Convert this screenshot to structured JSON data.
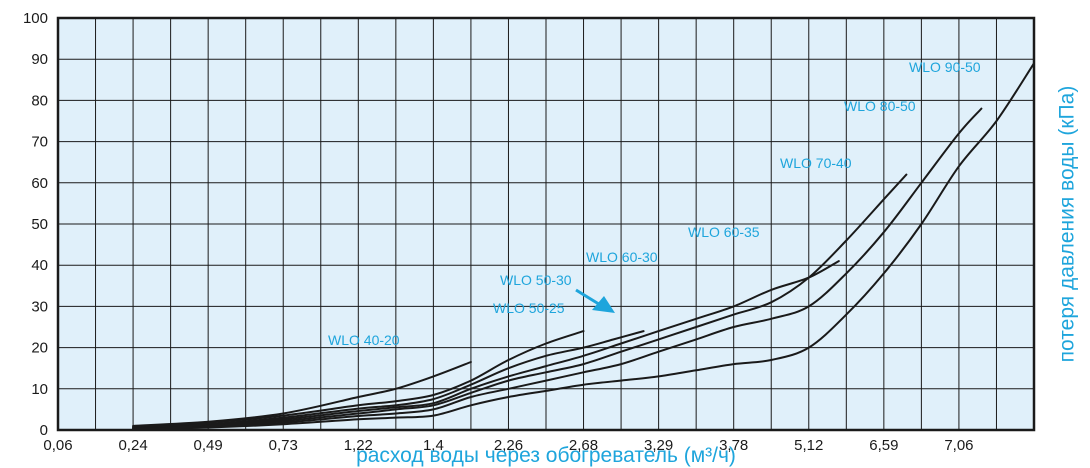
{
  "chart_data": {
    "type": "line",
    "xlabel": "расход воды через обогреватель (м³/ч)",
    "ylabel": "потеря давления воды (кПа)",
    "categories": [
      "0,06",
      "0,24",
      "0,49",
      "0,73",
      "1,22",
      "1,4",
      "2,26",
      "2,68",
      "3,29",
      "3,78",
      "5,12",
      "6,59",
      "7,06"
    ],
    "ylim": [
      0,
      100
    ],
    "yticks": [
      0,
      10,
      20,
      30,
      40,
      50,
      60,
      70,
      80,
      90,
      100
    ],
    "grid": true,
    "colors": {
      "plot_bg": "#e0f0fa",
      "grid": "#1a1a1a",
      "line": "#1a1a1a",
      "accent": "#1ea5dc"
    },
    "x_scale_note": "ordinal",
    "series": [
      {
        "name": "WLO 40-20",
        "points": [
          [
            1,
            1
          ],
          [
            2,
            2
          ],
          [
            3,
            4
          ],
          [
            4,
            8
          ],
          [
            4.5,
            10
          ],
          [
            5,
            13
          ],
          [
            5.5,
            16.5
          ]
        ]
      },
      {
        "name": "WLO 50-25",
        "points": [
          [
            1,
            0.8
          ],
          [
            2,
            1.8
          ],
          [
            3,
            3.5
          ],
          [
            4,
            6
          ],
          [
            4.5,
            7
          ],
          [
            5,
            8.5
          ],
          [
            5.5,
            12
          ],
          [
            6,
            17
          ],
          [
            6.5,
            21
          ],
          [
            7,
            24
          ]
        ]
      },
      {
        "name": "WLO 50-30",
        "points": [
          [
            1,
            0.6
          ],
          [
            2,
            1.4
          ],
          [
            3,
            3
          ],
          [
            4,
            5.2
          ],
          [
            4.5,
            6
          ],
          [
            5,
            7.5
          ],
          [
            5.5,
            11
          ],
          [
            6,
            15
          ],
          [
            6.5,
            18
          ],
          [
            7,
            20
          ],
          [
            7.4,
            22
          ],
          [
            7.8,
            24
          ]
        ]
      },
      {
        "name": "WLO 60-30",
        "points": [
          [
            1,
            0.5
          ],
          [
            2,
            1.2
          ],
          [
            3,
            2.6
          ],
          [
            4,
            4.6
          ],
          [
            4.5,
            5.5
          ],
          [
            5,
            6.5
          ],
          [
            5.5,
            10
          ],
          [
            6,
            13
          ],
          [
            6.5,
            15.5
          ],
          [
            7,
            18
          ],
          [
            7.5,
            21
          ],
          [
            8,
            24
          ],
          [
            8.5,
            27
          ],
          [
            9,
            30
          ],
          [
            9.5,
            34
          ],
          [
            10,
            37
          ],
          [
            10.4,
            41
          ]
        ]
      },
      {
        "name": "WLO 60-35",
        "points": [
          [
            1,
            0.4
          ],
          [
            2,
            1
          ],
          [
            3,
            2.2
          ],
          [
            4,
            4
          ],
          [
            4.5,
            5
          ],
          [
            5,
            6
          ],
          [
            5.5,
            9
          ],
          [
            6,
            12
          ],
          [
            6.5,
            14
          ],
          [
            7,
            16
          ],
          [
            7.5,
            19
          ],
          [
            8,
            22
          ],
          [
            8.5,
            25
          ],
          [
            9,
            28
          ],
          [
            9.5,
            31
          ],
          [
            10,
            37
          ],
          [
            10.5,
            46
          ],
          [
            11,
            56
          ],
          [
            11.3,
            62
          ]
        ]
      },
      {
        "name": "WLO 70-40",
        "points": [
          [
            1,
            0.3
          ],
          [
            2,
            0.8
          ],
          [
            3,
            1.8
          ],
          [
            4,
            3.4
          ],
          [
            4.5,
            4
          ],
          [
            5,
            5
          ],
          [
            5.5,
            8
          ],
          [
            6,
            10
          ],
          [
            6.5,
            12
          ],
          [
            7,
            14
          ],
          [
            7.5,
            16
          ],
          [
            8,
            19
          ],
          [
            8.5,
            22
          ],
          [
            9,
            25
          ],
          [
            9.5,
            27
          ],
          [
            10,
            30
          ],
          [
            10.5,
            38
          ],
          [
            11,
            48
          ],
          [
            11.5,
            60
          ],
          [
            12,
            72
          ],
          [
            12.3,
            78
          ]
        ]
      },
      {
        "name": "WLO 80-50",
        "points": [
          [
            1,
            0.2
          ],
          [
            2,
            0.6
          ],
          [
            3,
            1.4
          ],
          [
            4,
            2.6
          ],
          [
            4.5,
            3
          ],
          [
            5,
            3.5
          ],
          [
            5.5,
            6
          ],
          [
            6,
            8
          ],
          [
            6.5,
            9.5
          ],
          [
            7,
            11
          ],
          [
            7.5,
            12
          ],
          [
            8,
            13
          ],
          [
            8.5,
            14.5
          ],
          [
            9,
            16
          ],
          [
            9.5,
            17
          ],
          [
            10,
            20
          ],
          [
            10.5,
            28
          ],
          [
            11,
            38
          ],
          [
            11.5,
            50
          ],
          [
            12,
            64
          ],
          [
            12.5,
            75
          ],
          [
            13,
            89
          ]
        ]
      }
    ],
    "annotations": [
      {
        "text": "WLO 40-20"
      },
      {
        "text": "WLO 50-25"
      },
      {
        "text": "WLO 50-30"
      },
      {
        "text": "WLO 60-30"
      },
      {
        "text": "WLO  60-35"
      },
      {
        "text": "WLO  70-40"
      },
      {
        "text": "WLO 80-50"
      },
      {
        "text": "WLO 90-50"
      }
    ]
  }
}
